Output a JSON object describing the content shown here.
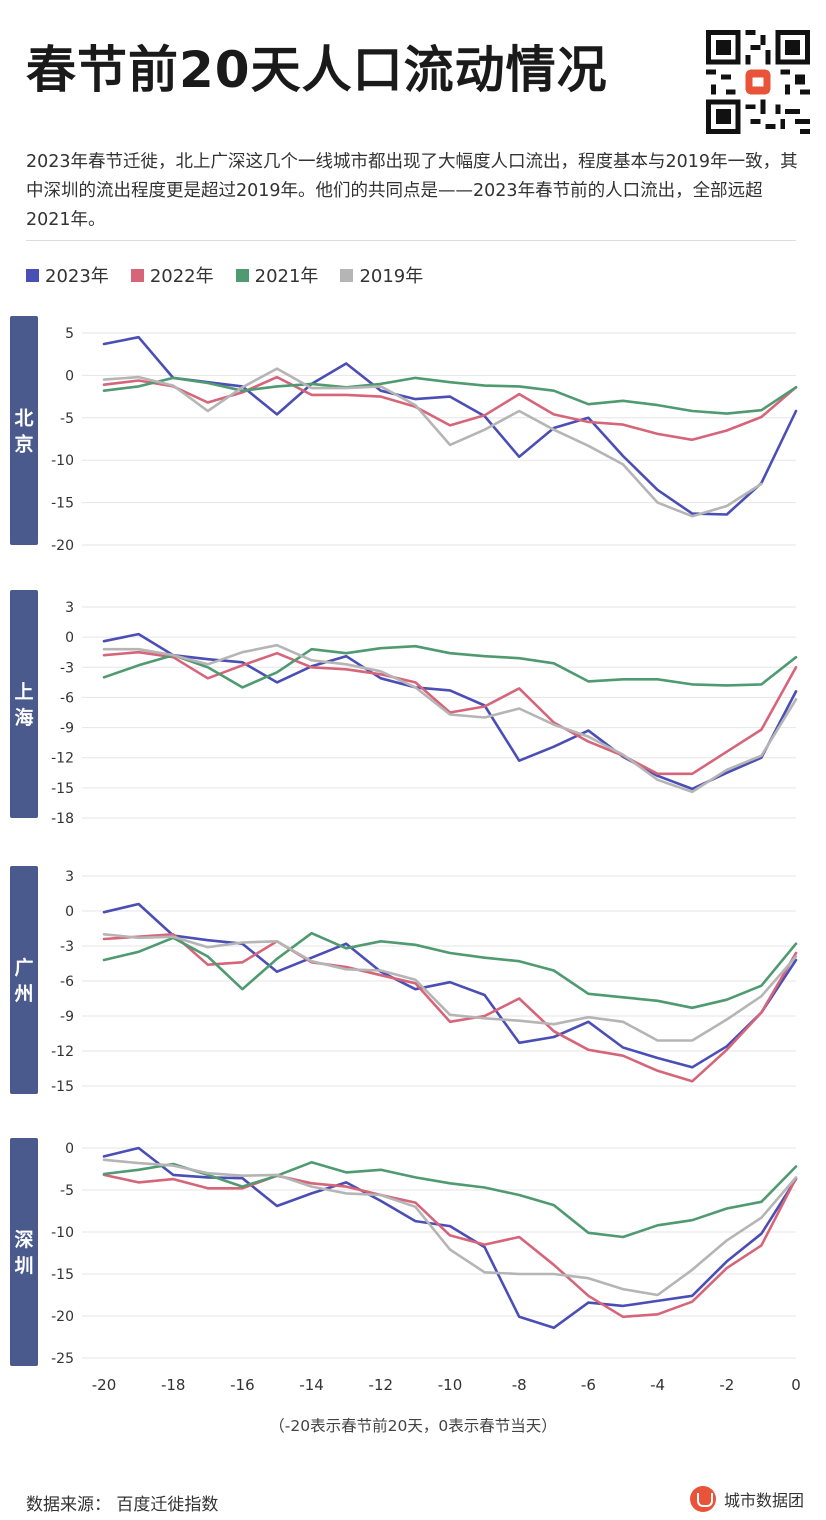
{
  "title": "春节前20天人口流动情况",
  "description": "2023年春节迁徙，北上广深这几个一线城市都出现了大幅度人口流出，程度基本与2019年一致，其中深圳的流出程度更是超过2019年。他们的共同点是——2023年春节前的人口流出，全部远超2021年。",
  "legend": [
    {
      "label": "2023年",
      "color": "#4a4eb5"
    },
    {
      "label": "2022年",
      "color": "#d6657a"
    },
    {
      "label": "2021年",
      "color": "#4f9a70"
    },
    {
      "label": "2019年",
      "color": "#b5b5b5"
    }
  ],
  "x_caption": "（-20表示春节前20天，0表示春节当天）",
  "source": "数据来源：  百度迁徙指数",
  "brand": "城市数据团",
  "chart_data": [
    {
      "type": "line",
      "city": "北京",
      "x": [
        -20,
        -19,
        -18,
        -17,
        -16,
        -15,
        -14,
        -13,
        -12,
        -11,
        -10,
        -9,
        -8,
        -7,
        -6,
        -5,
        -4,
        -3,
        -2,
        -1,
        0
      ],
      "xticks": [
        -20,
        -18,
        -16,
        -14,
        -12,
        -10,
        -8,
        -6,
        -4,
        -2,
        0
      ],
      "ylim": [
        -20,
        5
      ],
      "yticks": [
        5,
        0,
        -5,
        -10,
        -15,
        -20
      ],
      "series": [
        {
          "name": "2023年",
          "values": [
            3.7,
            4.5,
            -0.3,
            -0.8,
            -1.3,
            -4.6,
            -1.0,
            1.4,
            -1.8,
            -2.8,
            -2.5,
            -4.8,
            -9.6,
            -6.2,
            -5.0,
            -9.5,
            -13.5,
            -16.3,
            -16.4,
            -12.7,
            -4.2
          ]
        },
        {
          "name": "2022年",
          "values": [
            -1.1,
            -0.6,
            -1.3,
            -3.2,
            -2.0,
            -0.2,
            -2.3,
            -2.3,
            -2.5,
            -3.7,
            -5.9,
            -4.7,
            -2.2,
            -4.6,
            -5.5,
            -5.8,
            -6.9,
            -7.6,
            -6.5,
            -4.9,
            -1.4
          ]
        },
        {
          "name": "2021年",
          "values": [
            -1.8,
            -1.3,
            -0.3,
            -0.9,
            -1.8,
            -1.3,
            -1.0,
            -1.4,
            -1.0,
            -0.3,
            -0.8,
            -1.2,
            -1.3,
            -1.8,
            -3.4,
            -3.0,
            -3.5,
            -4.2,
            -4.5,
            -4.1,
            -1.4
          ]
        },
        {
          "name": "2019年",
          "values": [
            -0.5,
            -0.2,
            -1.2,
            -4.2,
            -1.4,
            0.8,
            -1.5,
            -1.5,
            -1.3,
            -3.5,
            -8.2,
            -6.4,
            -4.2,
            -6.4,
            -8.3,
            -10.5,
            -15.0,
            -16.6,
            -15.4,
            -12.8,
            null
          ]
        }
      ]
    },
    {
      "type": "line",
      "city": "上海",
      "x": [
        -20,
        -19,
        -18,
        -17,
        -16,
        -15,
        -14,
        -13,
        -12,
        -11,
        -10,
        -9,
        -8,
        -7,
        -6,
        -5,
        -4,
        -3,
        -2,
        -1,
        0
      ],
      "xticks": [
        -20,
        -18,
        -16,
        -14,
        -12,
        -10,
        -8,
        -6,
        -4,
        -2,
        0
      ],
      "ylim": [
        -18,
        3
      ],
      "yticks": [
        3,
        0,
        -3,
        -6,
        -9,
        -12,
        -15,
        -18
      ],
      "series": [
        {
          "name": "2023年",
          "values": [
            -0.4,
            0.3,
            -1.8,
            -2.2,
            -2.5,
            -4.5,
            -2.9,
            -1.9,
            -4.1,
            -5.0,
            -5.3,
            -6.8,
            -12.3,
            -10.9,
            -9.3,
            -11.9,
            -13.8,
            -15.1,
            -13.5,
            -12.0,
            -5.4
          ]
        },
        {
          "name": "2022年",
          "values": [
            -1.8,
            -1.5,
            -2.0,
            -4.1,
            -2.8,
            -1.6,
            -3.0,
            -3.2,
            -3.7,
            -4.5,
            -7.5,
            -6.9,
            -5.1,
            -8.5,
            -10.4,
            -11.8,
            -13.6,
            -13.6,
            -11.4,
            -9.2,
            -3.0
          ]
        },
        {
          "name": "2021年",
          "values": [
            -4.0,
            -2.8,
            -1.8,
            -3.0,
            -5.0,
            -3.5,
            -1.2,
            -1.6,
            -1.1,
            -0.9,
            -1.6,
            -1.9,
            -2.1,
            -2.6,
            -4.4,
            -4.2,
            -4.2,
            -4.7,
            -4.8,
            -4.7,
            -2.0
          ]
        },
        {
          "name": "2019年",
          "values": [
            -1.2,
            -1.2,
            -1.8,
            -2.7,
            -1.5,
            -0.8,
            -2.3,
            -2.7,
            -3.4,
            -5.0,
            -7.7,
            -8.0,
            -7.1,
            -8.7,
            -9.9,
            -11.7,
            -14.2,
            -15.4,
            -13.2,
            -11.8,
            -6.2
          ]
        }
      ]
    },
    {
      "type": "line",
      "city": "广州",
      "x": [
        -20,
        -19,
        -18,
        -17,
        -16,
        -15,
        -14,
        -13,
        -12,
        -11,
        -10,
        -9,
        -8,
        -7,
        -6,
        -5,
        -4,
        -3,
        -2,
        -1,
        0
      ],
      "xticks": [
        -20,
        -18,
        -16,
        -14,
        -12,
        -10,
        -8,
        -6,
        -4,
        -2,
        0
      ],
      "ylim": [
        -15,
        3
      ],
      "yticks": [
        3,
        0,
        -3,
        -6,
        -9,
        -12,
        -15
      ],
      "series": [
        {
          "name": "2023年",
          "values": [
            -0.1,
            0.6,
            -2.1,
            -2.5,
            -2.8,
            -5.2,
            -4.0,
            -2.8,
            -5.2,
            -6.7,
            -6.1,
            -7.2,
            -11.3,
            -10.8,
            -9.5,
            -11.7,
            -12.6,
            -13.4,
            -11.6,
            -8.7,
            -4.2
          ]
        },
        {
          "name": "2022年",
          "values": [
            -2.4,
            -2.2,
            -2.0,
            -4.6,
            -4.4,
            -2.6,
            -4.4,
            -4.8,
            -5.5,
            -6.2,
            -9.5,
            -9.0,
            -7.5,
            -10.3,
            -11.9,
            -12.4,
            -13.7,
            -14.6,
            -11.9,
            -8.7,
            -3.6
          ]
        },
        {
          "name": "2021年",
          "values": [
            -4.2,
            -3.5,
            -2.3,
            -3.9,
            -6.7,
            -4.1,
            -1.9,
            -3.2,
            -2.6,
            -2.9,
            -3.6,
            -4.0,
            -4.3,
            -5.1,
            -7.1,
            -7.4,
            -7.7,
            -8.3,
            -7.6,
            -6.4,
            -2.8
          ]
        },
        {
          "name": "2019年",
          "values": [
            -2.0,
            -2.3,
            -2.2,
            -3.1,
            -2.7,
            -2.6,
            -4.3,
            -5.0,
            -5.1,
            -5.9,
            -8.9,
            -9.2,
            -9.4,
            -9.7,
            -9.1,
            -9.5,
            -11.1,
            -11.1,
            -9.3,
            -7.3,
            -3.9
          ]
        }
      ]
    },
    {
      "type": "line",
      "city": "深圳",
      "x": [
        -20,
        -19,
        -18,
        -17,
        -16,
        -15,
        -14,
        -13,
        -12,
        -11,
        -10,
        -9,
        -8,
        -7,
        -6,
        -5,
        -4,
        -3,
        -2,
        -1,
        0
      ],
      "xticks": [
        -20,
        -18,
        -16,
        -14,
        -12,
        -10,
        -8,
        -6,
        -4,
        -2,
        0
      ],
      "ylim": [
        -25,
        0
      ],
      "yticks": [
        0,
        -5,
        -10,
        -15,
        -20,
        -25
      ],
      "series": [
        {
          "name": "2023年",
          "values": [
            -1.0,
            0.0,
            -3.2,
            -3.5,
            -3.6,
            -6.9,
            -5.4,
            -4.1,
            -6.3,
            -8.7,
            -9.3,
            -11.8,
            -20.1,
            -21.4,
            -18.4,
            -18.8,
            -18.2,
            -17.6,
            -13.5,
            -10.2,
            -3.7
          ]
        },
        {
          "name": "2022年",
          "values": [
            -3.2,
            -4.1,
            -3.7,
            -4.8,
            -4.8,
            -3.3,
            -4.2,
            -4.6,
            -5.6,
            -6.5,
            -10.4,
            -11.5,
            -10.6,
            -13.9,
            -17.6,
            -20.1,
            -19.8,
            -18.3,
            -14.3,
            -11.6,
            -3.6
          ]
        },
        {
          "name": "2021年",
          "values": [
            -3.1,
            -2.6,
            -1.9,
            -3.2,
            -4.6,
            -3.3,
            -1.7,
            -2.9,
            -2.6,
            -3.5,
            -4.2,
            -4.7,
            -5.6,
            -6.8,
            -10.1,
            -10.6,
            -9.2,
            -8.6,
            -7.2,
            -6.4,
            -2.2
          ]
        },
        {
          "name": "2019年",
          "values": [
            -1.4,
            -1.8,
            -2.1,
            -3.0,
            -3.3,
            -3.2,
            -4.6,
            -5.4,
            -5.6,
            -7.0,
            -12.1,
            -14.8,
            -15.0,
            -15.0,
            -15.5,
            -16.8,
            -17.5,
            -14.5,
            -11.0,
            -8.3,
            -3.5
          ]
        }
      ]
    }
  ]
}
